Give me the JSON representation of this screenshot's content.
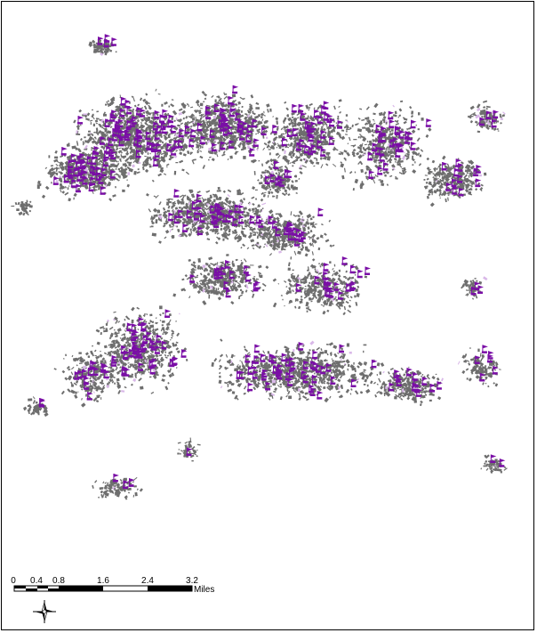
{
  "map": {
    "colors": {
      "background": "#ffffff",
      "parcel": "#6e6e6e",
      "parcel_highlight": "#d9b8e8",
      "marker": "#7a0ea6"
    }
  },
  "scale_bar": {
    "ticks": [
      "0",
      "0.4",
      "0.8",
      "1.6",
      "2.4",
      "3.2"
    ],
    "units": "Miles"
  },
  "north_arrow": {
    "icon": "north-arrow-icon"
  }
}
